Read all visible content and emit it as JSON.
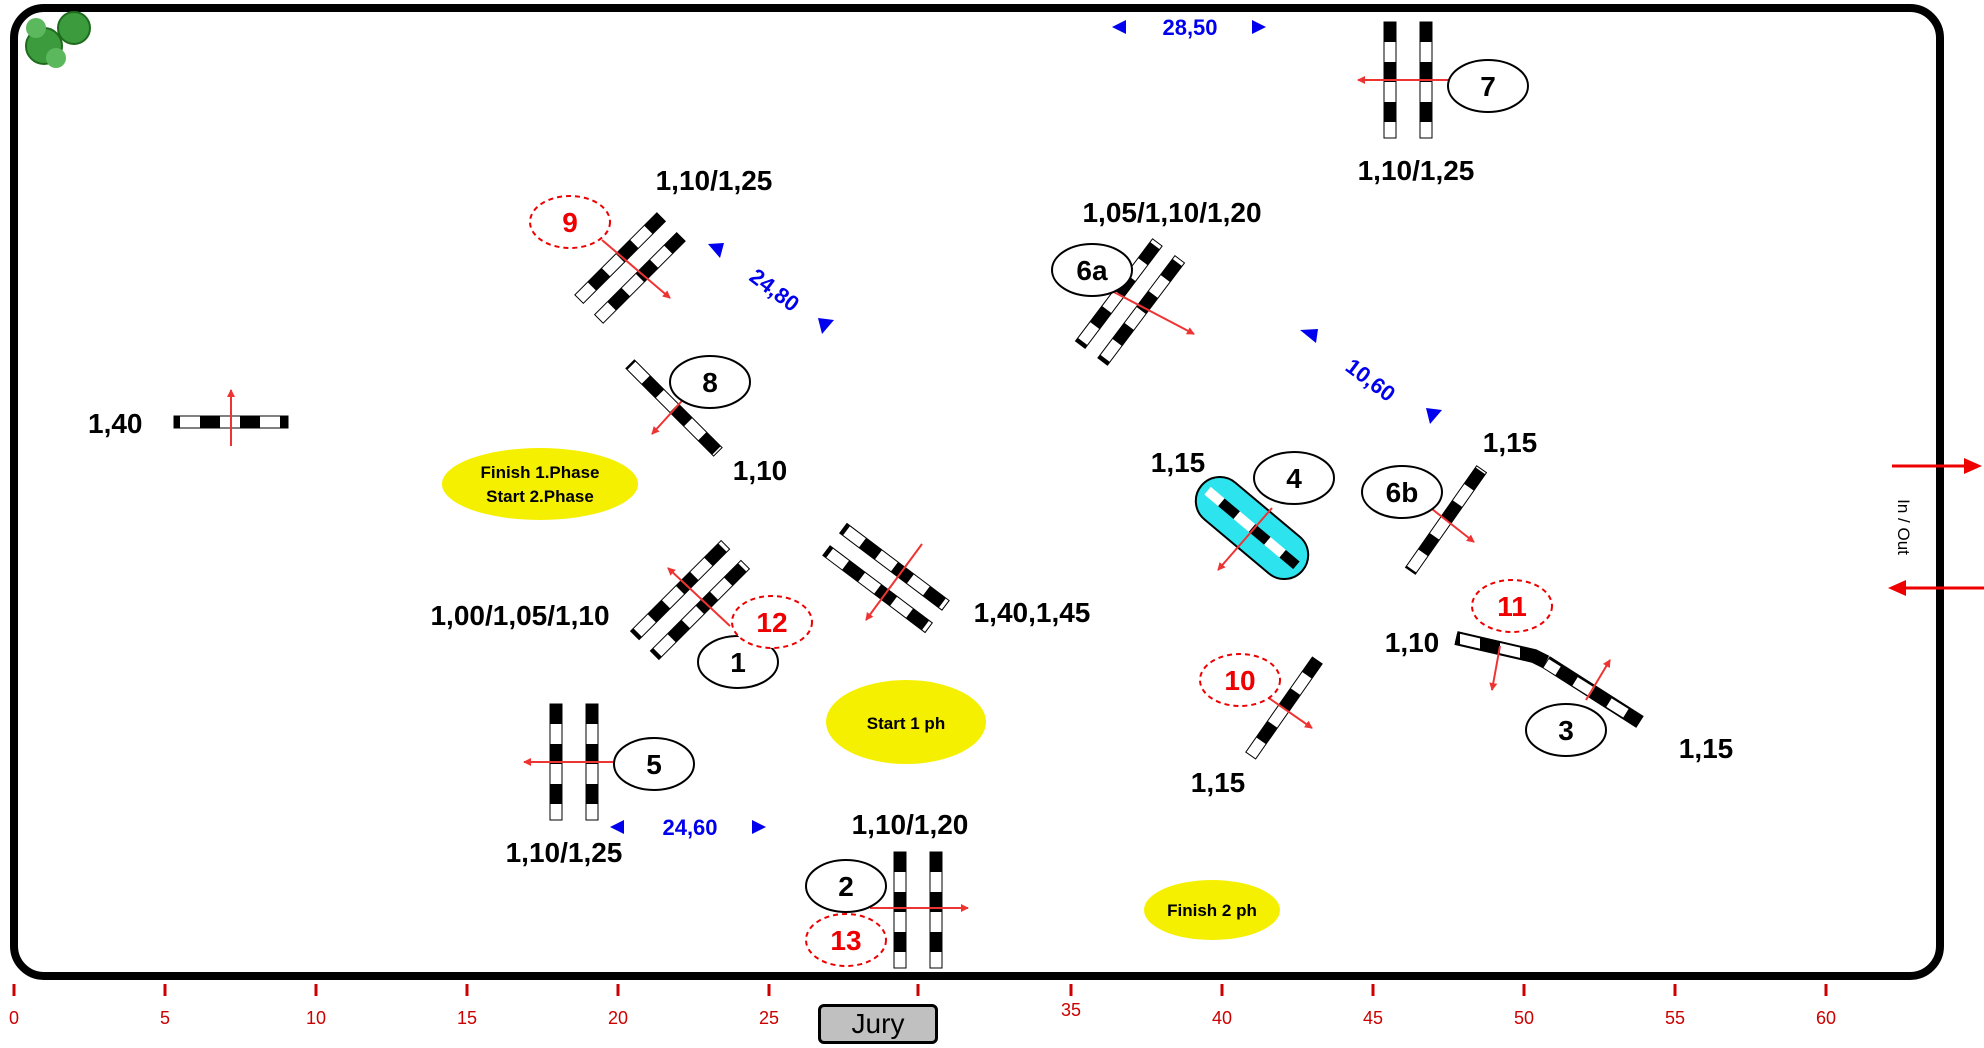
{
  "course": {
    "arena_label": "In / Out",
    "jury_label": "Jury",
    "colors": {
      "accent_red": "#ee0000",
      "distance_blue": "#0000ee",
      "zone_yellow": "#f5f000",
      "water_cyan": "#2de3ee"
    }
  },
  "ruler": {
    "ticks": [
      "0",
      "5",
      "10",
      "15",
      "20",
      "25",
      "35",
      "40",
      "45",
      "50",
      "55",
      "60"
    ]
  },
  "distances": {
    "d_top": "28,50",
    "d_9_6a": "24,80",
    "d_6a_6b": "10,60",
    "d_5_2": "24,60"
  },
  "zones": {
    "finish_start_line1": "Finish   1.Phase",
    "finish_start_line2": "Start 2.Phase",
    "start1": "Start 1 ph",
    "finish2": "Finish 2 ph"
  },
  "obstacles": {
    "o1": {
      "number": "1",
      "height": "1,00/1,05/1,10"
    },
    "o2": {
      "number": "2",
      "height": "1,10/1,20"
    },
    "o3": {
      "number": "3",
      "height_a": "1,10",
      "height_b": "1,15"
    },
    "o4": {
      "number": "4",
      "height": "1,15"
    },
    "o5": {
      "number": "5",
      "height": "1,10/1,25"
    },
    "o6a": {
      "number": "6a",
      "height": "1,05/1,10/1,20"
    },
    "o6b": {
      "number": "6b",
      "height": "1,15"
    },
    "o7": {
      "number": "7",
      "height": "1,10/1,25"
    },
    "o8": {
      "number": "8",
      "height": "1,10"
    },
    "o9": {
      "number": "9",
      "height": "1,10/1,25"
    },
    "o10": {
      "number": "10",
      "height": "1,15"
    },
    "o11": {
      "number": "11"
    },
    "o12": {
      "number": "12",
      "height": "1,40,1,45"
    },
    "o13": {
      "number": "13"
    },
    "warmup": {
      "height": "1,40"
    }
  }
}
